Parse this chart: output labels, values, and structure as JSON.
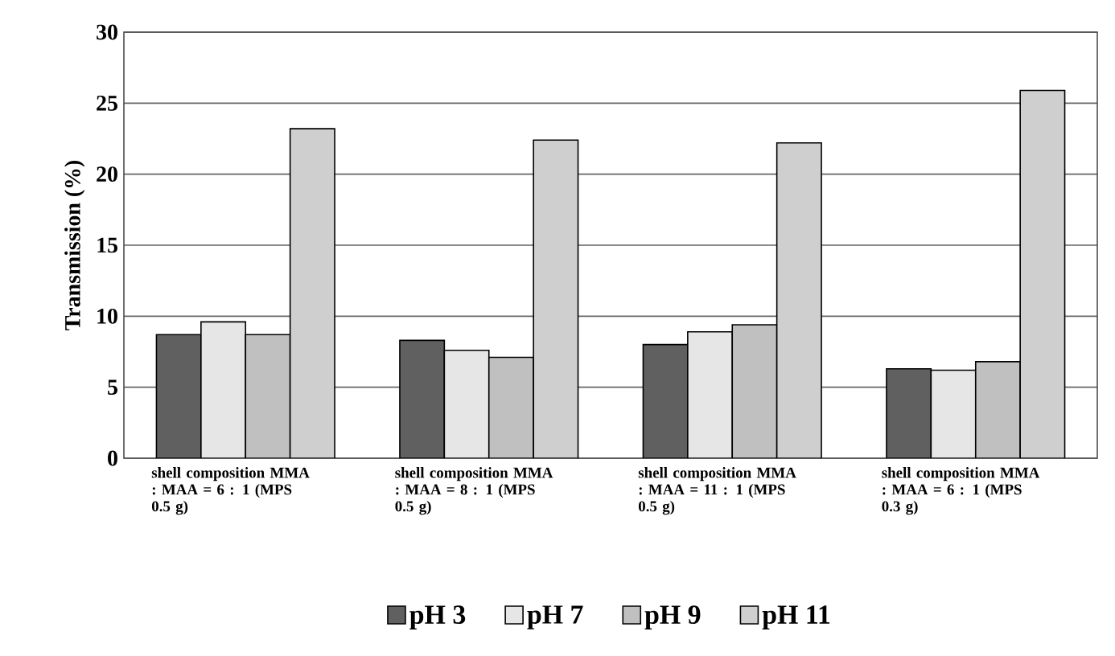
{
  "chart_data": {
    "type": "bar",
    "ylabel": "Transmission (%)",
    "categories": [
      "shell composition MMA : MAA = 6 : 1 (MPS 0.5 g)",
      "shell composition MMA : MAA = 8 : 1 (MPS 0.5 g)",
      "shell composition MMA : MAA = 11 : 1 (MPS 0.5 g)",
      "shell composition MMA : MAA = 6 : 1 (MPS 0.3 g)"
    ],
    "series": [
      {
        "name": "pH 3",
        "color": "#606060",
        "values": [
          8.7,
          8.3,
          8.0,
          6.3
        ]
      },
      {
        "name": "pH 7",
        "color": "#e6e6e6",
        "values": [
          9.6,
          7.6,
          8.9,
          6.2
        ]
      },
      {
        "name": "pH 9",
        "color": "#c0c0c0",
        "values": [
          8.7,
          7.1,
          9.4,
          6.8
        ]
      },
      {
        "name": "pH 11",
        "color": "#cfcfcf",
        "values": [
          23.2,
          22.4,
          22.2,
          25.9
        ]
      }
    ],
    "ylim": [
      0,
      30
    ],
    "yticks": [
      0,
      5,
      10,
      15,
      20,
      25,
      30
    ],
    "grid": "y",
    "legend": "bottom"
  }
}
